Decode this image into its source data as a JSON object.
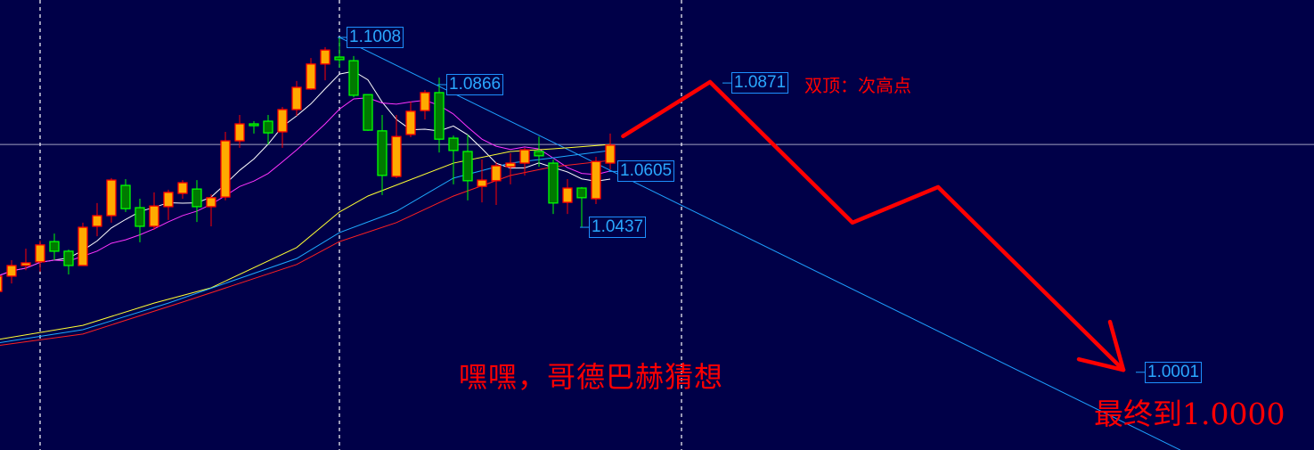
{
  "chart_data": {
    "type": "candlestick",
    "title": "",
    "xlabel": "",
    "ylabel": "",
    "grid": false,
    "background": "#000048",
    "colors": {
      "up_body": "#ffaa00",
      "up_border": "#ff0000",
      "down_body": "#007a00",
      "down_border": "#00ff00",
      "trendline": "#1ea0ff",
      "hline": "#a0a0c0",
      "vline": "#ffffff",
      "annotation": "#ff0000"
    },
    "candles": [
      {
        "o": 1.0244,
        "h": 1.0295,
        "l": 1.0244,
        "c": 1.029
      },
      {
        "o": 1.029,
        "h": 1.0338,
        "l": 1.0268,
        "c": 1.0322
      },
      {
        "o": 1.0322,
        "h": 1.0373,
        "l": 1.0308,
        "c": 1.033
      },
      {
        "o": 1.0333,
        "h": 1.0397,
        "l": 1.0303,
        "c": 1.0384
      },
      {
        "o": 1.0394,
        "h": 1.0418,
        "l": 1.0338,
        "c": 1.0365
      },
      {
        "o": 1.0365,
        "h": 1.037,
        "l": 1.0295,
        "c": 1.0322
      },
      {
        "o": 1.0322,
        "h": 1.0451,
        "l": 1.0322,
        "c": 1.0437
      },
      {
        "o": 1.044,
        "h": 1.051,
        "l": 1.041,
        "c": 1.0472
      },
      {
        "o": 1.0472,
        "h": 1.0585,
        "l": 1.0451,
        "c": 1.0579
      },
      {
        "o": 1.0563,
        "h": 1.0582,
        "l": 1.0483,
        "c": 1.0493
      },
      {
        "o": 1.0496,
        "h": 1.0523,
        "l": 1.0392,
        "c": 1.044
      },
      {
        "o": 1.044,
        "h": 1.0542,
        "l": 1.0429,
        "c": 1.0501
      },
      {
        "o": 1.0499,
        "h": 1.055,
        "l": 1.0459,
        "c": 1.0542
      },
      {
        "o": 1.0539,
        "h": 1.0579,
        "l": 1.0523,
        "c": 1.0571
      },
      {
        "o": 1.0552,
        "h": 1.0579,
        "l": 1.0453,
        "c": 1.0499
      },
      {
        "o": 1.0499,
        "h": 1.0536,
        "l": 1.044,
        "c": 1.0526
      },
      {
        "o": 1.0528,
        "h": 1.0724,
        "l": 1.0518,
        "c": 1.0697
      },
      {
        "o": 1.0697,
        "h": 1.0775,
        "l": 1.0676,
        "c": 1.0748
      },
      {
        "o": 1.0748,
        "h": 1.0756,
        "l": 1.0719,
        "c": 1.0743
      },
      {
        "o": 1.0756,
        "h": 1.0775,
        "l": 1.0686,
        "c": 1.0721
      },
      {
        "o": 1.0724,
        "h": 1.0799,
        "l": 1.0676,
        "c": 1.0791
      },
      {
        "o": 1.0791,
        "h": 1.0877,
        "l": 1.0772,
        "c": 1.0858
      },
      {
        "o": 1.0853,
        "h": 1.0946,
        "l": 1.085,
        "c": 1.0928
      },
      {
        "o": 1.0928,
        "h": 1.0979,
        "l": 1.0879,
        "c": 1.097
      },
      {
        "o": 1.0949,
        "h": 1.1008,
        "l": 1.0917,
        "c": 1.0941
      },
      {
        "o": 1.0938,
        "h": 1.0952,
        "l": 1.0828,
        "c": 1.0834
      },
      {
        "o": 1.0836,
        "h": 1.0836,
        "l": 1.0727,
        "c": 1.0729
      },
      {
        "o": 1.0727,
        "h": 1.0775,
        "l": 1.0534,
        "c": 1.0593
      },
      {
        "o": 1.059,
        "h": 1.0775,
        "l": 1.0585,
        "c": 1.071
      },
      {
        "o": 1.0716,
        "h": 1.0815,
        "l": 1.0708,
        "c": 1.0786
      },
      {
        "o": 1.0788,
        "h": 1.085,
        "l": 1.0761,
        "c": 1.0842
      },
      {
        "o": 1.0842,
        "h": 1.0887,
        "l": 1.0662,
        "c": 1.0702
      },
      {
        "o": 1.0705,
        "h": 1.0713,
        "l": 1.0566,
        "c": 1.0668
      },
      {
        "o": 1.0665,
        "h": 1.0716,
        "l": 1.0518,
        "c": 1.0577
      },
      {
        "o": 1.056,
        "h": 1.0641,
        "l": 1.0512,
        "c": 1.0579
      },
      {
        "o": 1.0577,
        "h": 1.0633,
        "l": 1.0504,
        "c": 1.0622
      },
      {
        "o": 1.0619,
        "h": 1.066,
        "l": 1.0566,
        "c": 1.063
      },
      {
        "o": 1.063,
        "h": 1.0676,
        "l": 1.0593,
        "c": 1.067
      },
      {
        "o": 1.0665,
        "h": 1.071,
        "l": 1.0619,
        "c": 1.0652
      },
      {
        "o": 1.063,
        "h": 1.0641,
        "l": 1.0477,
        "c": 1.051
      },
      {
        "o": 1.0512,
        "h": 1.0582,
        "l": 1.0477,
        "c": 1.0555
      },
      {
        "o": 1.0555,
        "h": 1.0558,
        "l": 1.0437,
        "c": 1.0526
      },
      {
        "o": 1.0523,
        "h": 1.0649,
        "l": 1.0507,
        "c": 1.0635
      },
      {
        "o": 1.063,
        "h": 1.0719,
        "l": 1.0611,
        "c": 1.0684
      }
    ],
    "moving_averages": [
      {
        "color": "#ffffff",
        "period": 5
      },
      {
        "color": "#ff33ff",
        "period": 10
      },
      {
        "color": "#ffff33",
        "points": [
          [
            0,
            1.0099
          ],
          [
            6,
            1.0142
          ],
          [
            11,
            1.0209
          ],
          [
            15,
            1.0255
          ],
          [
            21,
            1.0376
          ],
          [
            24,
            1.0483
          ],
          [
            26,
            1.0531
          ],
          [
            32,
            1.063
          ],
          [
            36,
            1.0665
          ],
          [
            39,
            1.0673
          ],
          [
            43,
            1.0686
          ]
        ]
      },
      {
        "color": "#1eaaff",
        "points": [
          [
            0,
            1.0089
          ],
          [
            6,
            1.0129
          ],
          [
            12,
            1.0209
          ],
          [
            21,
            1.0343
          ],
          [
            24,
            1.0421
          ],
          [
            28,
            1.0485
          ],
          [
            32,
            1.0585
          ],
          [
            36,
            1.063
          ],
          [
            39,
            1.0646
          ],
          [
            43,
            1.0668
          ]
        ]
      },
      {
        "color": "#ff2020",
        "points": [
          [
            0,
            1.0081
          ],
          [
            6,
            1.0116
          ],
          [
            13,
            1.0212
          ],
          [
            21,
            1.0325
          ],
          [
            24,
            1.0394
          ],
          [
            28,
            1.0451
          ],
          [
            32,
            1.0531
          ],
          [
            36,
            1.0593
          ],
          [
            39,
            1.0619
          ],
          [
            43,
            1.0638
          ]
        ]
      }
    ],
    "horizontal_line": 1.0686,
    "vertical_lines": [
      3,
      24,
      48
    ],
    "trendline": [
      [
        24,
        1.1008
      ],
      [
        83,
        0.9767
      ]
    ],
    "price_labels": [
      {
        "text": "1.1008",
        "index": 24,
        "price": 1.1008
      },
      {
        "text": "1.0866",
        "index": 31,
        "price": 1.0866
      },
      {
        "text": "1.0605",
        "index": 43,
        "price": 1.0605
      },
      {
        "text": "1.0437",
        "index": 41,
        "price": 1.0437
      },
      {
        "text": "1.0871",
        "index": 51,
        "price": 1.0871
      },
      {
        "text": "1.0001",
        "index": 80,
        "price": 1.0001
      }
    ],
    "forecast_path": [
      [
        43.9,
        1.0711
      ],
      [
        50,
        1.0874
      ],
      [
        60,
        1.0451
      ],
      [
        66,
        1.0558
      ],
      [
        79,
        1.0008
      ]
    ]
  },
  "annotations": {
    "double_top": "双顶：次高点",
    "goldbach": "嘿嘿，哥德巴赫猜想",
    "final_target": "最终到1.0000"
  }
}
